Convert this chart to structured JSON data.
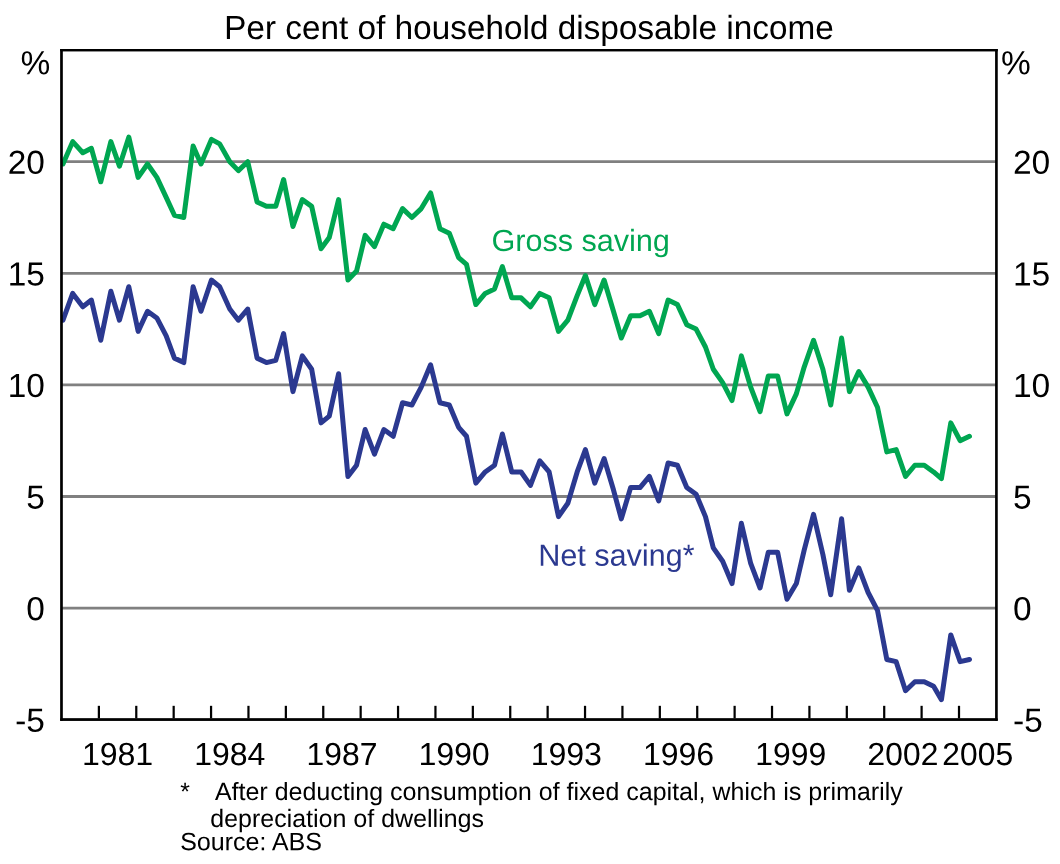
{
  "chart_data": {
    "type": "line",
    "title": "Per cent of household disposable income",
    "ylabel": "%",
    "y2label": "%",
    "series": [
      {
        "name": "Gross saving",
        "color": "#00a651",
        "x": [
          1980.04,
          1980.3,
          1980.57,
          1980.8,
          1981.05,
          1981.32,
          1981.55,
          1981.8,
          1982.05,
          1982.3,
          1982.55,
          1982.8,
          1983.02,
          1983.27,
          1983.52,
          1983.73,
          1984.01,
          1984.23,
          1984.5,
          1984.73,
          1984.98,
          1985.23,
          1985.48,
          1985.73,
          1985.94,
          1986.19,
          1986.44,
          1986.69,
          1986.94,
          1987.16,
          1987.41,
          1987.66,
          1987.89,
          1988.12,
          1988.37,
          1988.62,
          1988.87,
          1989.12,
          1989.37,
          1989.62,
          1989.87,
          1990.12,
          1990.37,
          1990.62,
          1990.83,
          1991.08,
          1991.33,
          1991.58,
          1991.79,
          1992.04,
          1992.29,
          1992.54,
          1992.79,
          1993.04,
          1993.29,
          1993.54,
          1993.79,
          1994.01,
          1994.26,
          1994.51,
          1994.76,
          1994.97,
          1995.22,
          1995.47,
          1995.72,
          1995.97,
          1996.22,
          1996.47,
          1996.72,
          1996.97,
          1997.22,
          1997.43,
          1997.68,
          1997.93,
          1998.18,
          1998.43,
          1998.68,
          1998.9,
          1999.15,
          1999.4,
          1999.65,
          1999.86,
          2000.11,
          2000.36,
          2000.57,
          2000.86,
          2001.07,
          2001.32,
          2001.57,
          2001.82,
          2002.07,
          2002.32,
          2002.57,
          2002.82,
          2003.07,
          2003.32,
          2003.53,
          2003.78,
          2004.03,
          2004.28
        ],
        "values": [
          19.9,
          20.9,
          20.4,
          20.6,
          19.1,
          20.9,
          19.8,
          21.1,
          19.3,
          19.9,
          19.3,
          18.4,
          17.6,
          17.5,
          20.7,
          19.9,
          21.0,
          20.8,
          20.0,
          19.6,
          20.0,
          18.2,
          18.0,
          18.0,
          19.2,
          17.1,
          18.3,
          18.0,
          16.1,
          16.6,
          18.3,
          14.7,
          15.1,
          16.7,
          16.2,
          17.2,
          17.0,
          17.9,
          17.5,
          17.9,
          18.6,
          17.0,
          16.8,
          15.7,
          15.4,
          13.6,
          14.1,
          14.3,
          15.3,
          13.9,
          13.9,
          13.5,
          14.1,
          13.9,
          12.4,
          12.9,
          14.0,
          14.9,
          13.6,
          14.7,
          13.3,
          12.1,
          13.1,
          13.1,
          13.3,
          12.3,
          13.8,
          13.6,
          12.7,
          12.5,
          11.7,
          10.7,
          10.1,
          9.3,
          11.3,
          9.9,
          8.8,
          10.4,
          10.4,
          8.7,
          9.6,
          10.8,
          12.0,
          10.7,
          9.1,
          12.1,
          9.7,
          10.6,
          9.9,
          9.0,
          7.0,
          7.1,
          5.9,
          6.4,
          6.4,
          6.1,
          5.8,
          8.3,
          7.5,
          7.7
        ]
      },
      {
        "name": "Net saving*",
        "color": "#2b3990",
        "x": [
          1980.04,
          1980.3,
          1980.57,
          1980.8,
          1981.05,
          1981.32,
          1981.55,
          1981.8,
          1982.05,
          1982.3,
          1982.55,
          1982.8,
          1983.02,
          1983.27,
          1983.52,
          1983.73,
          1984.01,
          1984.23,
          1984.5,
          1984.73,
          1984.98,
          1985.23,
          1985.48,
          1985.73,
          1985.94,
          1986.19,
          1986.44,
          1986.69,
          1986.94,
          1987.16,
          1987.41,
          1987.66,
          1987.89,
          1988.12,
          1988.37,
          1988.62,
          1988.87,
          1989.12,
          1989.37,
          1989.62,
          1989.87,
          1990.12,
          1990.37,
          1990.62,
          1990.83,
          1991.08,
          1991.33,
          1991.58,
          1991.79,
          1992.04,
          1992.29,
          1992.54,
          1992.79,
          1993.04,
          1993.29,
          1993.54,
          1993.79,
          1994.01,
          1994.26,
          1994.51,
          1994.76,
          1994.97,
          1995.22,
          1995.47,
          1995.72,
          1995.97,
          1996.22,
          1996.47,
          1996.72,
          1996.97,
          1997.22,
          1997.43,
          1997.68,
          1997.93,
          1998.18,
          1998.43,
          1998.68,
          1998.9,
          1999.15,
          1999.4,
          1999.65,
          1999.86,
          2000.11,
          2000.36,
          2000.57,
          2000.86,
          2001.07,
          2001.32,
          2001.57,
          2001.82,
          2002.07,
          2002.32,
          2002.57,
          2002.82,
          2003.07,
          2003.32,
          2003.53,
          2003.78,
          2004.03,
          2004.28
        ],
        "values": [
          12.9,
          14.1,
          13.5,
          13.8,
          12.0,
          14.2,
          12.9,
          14.4,
          12.4,
          13.3,
          13.0,
          12.2,
          11.2,
          11.0,
          14.4,
          13.3,
          14.7,
          14.4,
          13.4,
          12.9,
          13.4,
          11.2,
          11.0,
          11.1,
          12.3,
          9.7,
          11.3,
          10.7,
          8.3,
          8.6,
          10.5,
          5.9,
          6.4,
          8.0,
          6.9,
          8.0,
          7.7,
          9.2,
          9.1,
          9.9,
          10.9,
          9.2,
          9.1,
          8.1,
          7.7,
          5.6,
          6.1,
          6.4,
          7.8,
          6.1,
          6.1,
          5.5,
          6.6,
          6.1,
          4.1,
          4.7,
          6.1,
          7.1,
          5.6,
          6.7,
          5.3,
          4.0,
          5.4,
          5.4,
          5.9,
          4.8,
          6.5,
          6.4,
          5.4,
          5.1,
          4.1,
          2.7,
          2.1,
          1.1,
          3.8,
          2.0,
          0.9,
          2.5,
          2.5,
          0.4,
          1.1,
          2.6,
          4.2,
          2.4,
          0.6,
          4.0,
          0.8,
          1.8,
          0.7,
          -0.1,
          -2.3,
          -2.4,
          -3.7,
          -3.3,
          -3.3,
          -3.5,
          -4.1,
          -1.2,
          -2.4,
          -2.3
        ]
      }
    ],
    "xlim": [
      1980,
      2005
    ],
    "xticks": [
      {
        "value": 1981,
        "label": null
      },
      {
        "value": 1981.5,
        "label": "1981"
      },
      {
        "value": 1982,
        "label": null
      },
      {
        "value": 1983,
        "label": null
      },
      {
        "value": 1984,
        "label": null
      },
      {
        "value": 1984.5,
        "label": "1984"
      },
      {
        "value": 1985,
        "label": null
      },
      {
        "value": 1986,
        "label": null
      },
      {
        "value": 1987,
        "label": null
      },
      {
        "value": 1987.5,
        "label": "1987"
      },
      {
        "value": 1988,
        "label": null
      },
      {
        "value": 1989,
        "label": null
      },
      {
        "value": 1990,
        "label": null
      },
      {
        "value": 1990.5,
        "label": "1990"
      },
      {
        "value": 1991,
        "label": null
      },
      {
        "value": 1992,
        "label": null
      },
      {
        "value": 1993,
        "label": null
      },
      {
        "value": 1993.5,
        "label": "1993"
      },
      {
        "value": 1994,
        "label": null
      },
      {
        "value": 1995,
        "label": null
      },
      {
        "value": 1996,
        "label": null
      },
      {
        "value": 1996.5,
        "label": "1996"
      },
      {
        "value": 1997,
        "label": null
      },
      {
        "value": 1998,
        "label": null
      },
      {
        "value": 1999,
        "label": null
      },
      {
        "value": 1999.5,
        "label": "1999"
      },
      {
        "value": 2000,
        "label": null
      },
      {
        "value": 2001,
        "label": null
      },
      {
        "value": 2002,
        "label": null
      },
      {
        "value": 2002.5,
        "label": "2002"
      },
      {
        "value": 2003,
        "label": null
      },
      {
        "value": 2004,
        "label": null
      },
      {
        "value": 2004.5,
        "label": "2005"
      }
    ],
    "ylim": [
      -5,
      25
    ],
    "yticks": [
      -5,
      0,
      5,
      10,
      15,
      20
    ],
    "y2lim": [
      -5,
      25
    ],
    "y2ticks": [
      -5,
      0,
      5,
      10,
      15,
      20
    ],
    "grid": "y",
    "legend": false,
    "marker": "none",
    "line_style": "solid",
    "annotations": [
      "* After deducting consumption of fixed capital, which is primarily\n  depreciation of dwellings",
      "Source: ABS"
    ]
  }
}
